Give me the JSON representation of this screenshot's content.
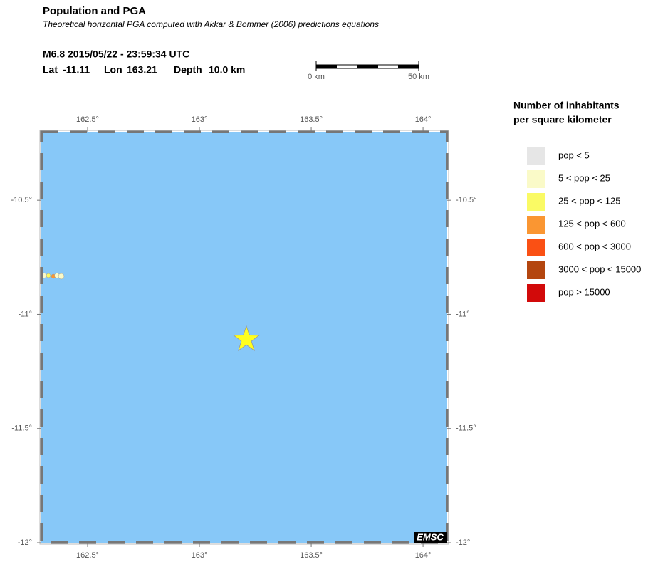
{
  "header": {
    "title": "Population and PGA",
    "subtitle": "Theoretical horizontal PGA computed with Akkar & Bommer (2006) predictions equations",
    "event": "M6.8  2015/05/22 - 23:59:34 UTC",
    "lat_label": "Lat",
    "lat": -11.11,
    "lon_label": "Lon",
    "lon": 163.21,
    "depth_label": "Depth",
    "depth": "10.0 km"
  },
  "scale_bar": {
    "start": "0 km",
    "end": "50 km"
  },
  "map": {
    "xlim": [
      162.293,
      164.108
    ],
    "ylim": [
      -12,
      -10.2
    ],
    "xticks": [
      {
        "value": 162.5,
        "label": "162.5°"
      },
      {
        "value": 163,
        "label": "163°"
      },
      {
        "value": 163.5,
        "label": "163.5°"
      },
      {
        "value": 164,
        "label": "164°"
      }
    ],
    "yticks": [
      {
        "value": -10.5,
        "label": "-10.5°"
      },
      {
        "value": -11,
        "label": "-11°"
      },
      {
        "value": -11.5,
        "label": "-11.5°"
      },
      {
        "value": -12,
        "label": "-12°"
      }
    ],
    "ocean_color": "#87c8f8",
    "epicenter_color": "#ffff1e",
    "logo": "EMSC"
  },
  "legend": {
    "title": [
      "Number of inhabitants",
      "per square kilometer"
    ],
    "items": [
      {
        "name": "pop < 5",
        "color": "#e6e6e6"
      },
      {
        "name": "5 < pop < 25",
        "color": "#fafac8"
      },
      {
        "name": "25 < pop < 125",
        "color": "#fafa64"
      },
      {
        "name": "125 < pop < 600",
        "color": "#fa9632"
      },
      {
        "name": "600 < pop < 3000",
        "color": "#fa5014"
      },
      {
        "name": "3000 < pop < 15000",
        "color": "#b4460f"
      },
      {
        "name": "pop > 15000",
        "color": "#d20a0a"
      }
    ]
  }
}
